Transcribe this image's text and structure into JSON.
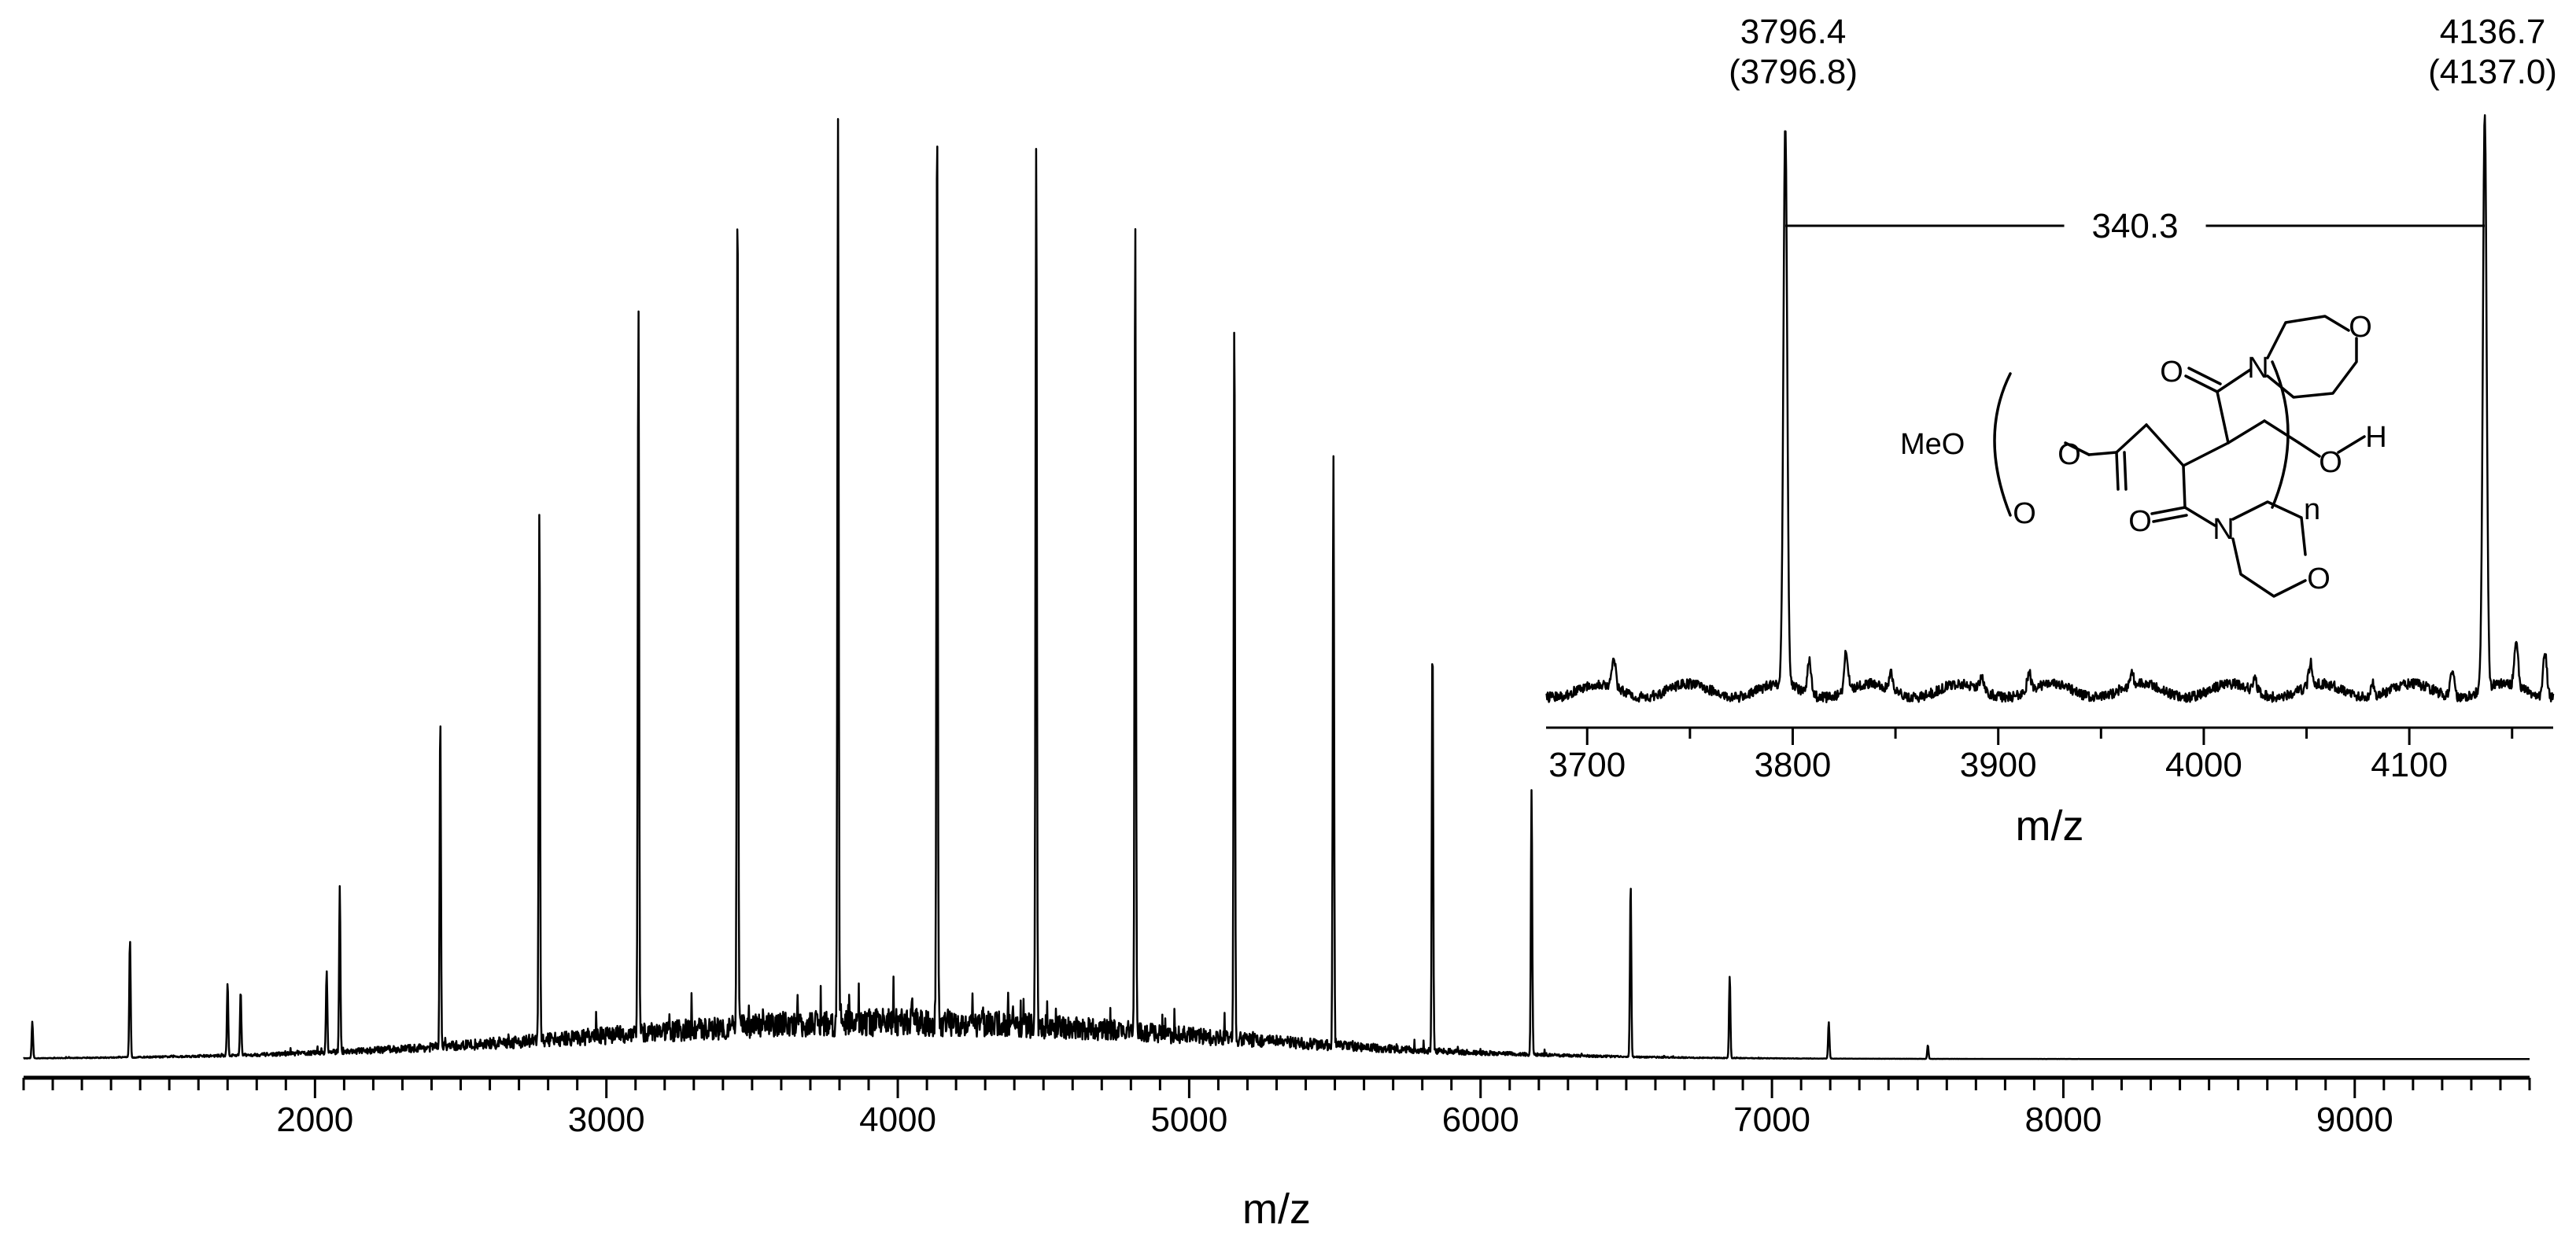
{
  "chart_data": [
    {
      "type": "line",
      "panel": "main",
      "xlabel": "m/z",
      "ylabel": "",
      "xlim": [
        1000,
        9600
      ],
      "x_ticks": [
        2000,
        3000,
        4000,
        5000,
        6000,
        7000,
        8000,
        9000
      ],
      "tick_labels": [
        "2000",
        "3000",
        "4000",
        "5000",
        "6000",
        "7000",
        "8000",
        "9000"
      ],
      "grid": false,
      "legend": "none",
      "peaks": [
        {
          "x": 1030,
          "y": 0.04
        },
        {
          "x": 1365,
          "y": 0.13
        },
        {
          "x": 1700,
          "y": 0.08
        },
        {
          "x": 1745,
          "y": 0.07
        },
        {
          "x": 2040,
          "y": 0.09
        },
        {
          "x": 2085,
          "y": 0.18
        },
        {
          "x": 2430,
          "y": 0.36
        },
        {
          "x": 2770,
          "y": 0.58
        },
        {
          "x": 3110,
          "y": 0.79
        },
        {
          "x": 3450,
          "y": 0.92
        },
        {
          "x": 3795,
          "y": 0.99
        },
        {
          "x": 4135,
          "y": 1.0
        },
        {
          "x": 4475,
          "y": 0.97
        },
        {
          "x": 4815,
          "y": 0.89
        },
        {
          "x": 5155,
          "y": 0.8
        },
        {
          "x": 5495,
          "y": 0.65
        },
        {
          "x": 5835,
          "y": 0.45
        },
        {
          "x": 6175,
          "y": 0.29
        },
        {
          "x": 6515,
          "y": 0.19
        },
        {
          "x": 6855,
          "y": 0.09
        },
        {
          "x": 7195,
          "y": 0.04
        },
        {
          "x": 7535,
          "y": 0.015
        }
      ]
    },
    {
      "type": "line",
      "panel": "inset",
      "xlabel": "m/z",
      "ylabel": "",
      "xlim": [
        3680,
        4170
      ],
      "x_ticks": [
        3700,
        3800,
        3900,
        4000,
        4100
      ],
      "tick_labels": [
        "3700",
        "3800",
        "3900",
        "4000",
        "4100"
      ],
      "grid": false,
      "peaks": [
        {
          "x": 3713,
          "y": 0.05
        },
        {
          "x": 3796.4,
          "y": 1.0
        },
        {
          "x": 3808,
          "y": 0.06
        },
        {
          "x": 3826,
          "y": 0.07
        },
        {
          "x": 3848,
          "y": 0.03
        },
        {
          "x": 3892,
          "y": 0.025
        },
        {
          "x": 3915,
          "y": 0.03
        },
        {
          "x": 3965,
          "y": 0.02
        },
        {
          "x": 4025,
          "y": 0.02
        },
        {
          "x": 4052,
          "y": 0.04
        },
        {
          "x": 4082,
          "y": 0.025
        },
        {
          "x": 4121,
          "y": 0.05
        },
        {
          "x": 4136.7,
          "y": 1.02
        },
        {
          "x": 4152,
          "y": 0.08
        },
        {
          "x": 4166,
          "y": 0.08
        }
      ],
      "annotations": [
        {
          "x": 3796.4,
          "line1": "3796.4",
          "line2": "(3796.8)"
        },
        {
          "x": 4136.7,
          "line1": "4136.7",
          "line2": "(4137.0)"
        }
      ],
      "spacing": {
        "from": 3796.4,
        "to": 4136.7,
        "label": "340.3"
      }
    }
  ],
  "structure": {
    "name": "poly(N-acryloylmorpholine) repeat unit",
    "labels": {
      "meo": "MeO",
      "o_ester": "O",
      "o_carbonyl_top": "O",
      "n_top": "N",
      "o_ring_top": "O",
      "o_carbonyl_bottom": "O",
      "n_bottom": "N",
      "o_ring_bottom": "O",
      "o_end": "O",
      "h_end": "H",
      "subscript": "n"
    }
  }
}
